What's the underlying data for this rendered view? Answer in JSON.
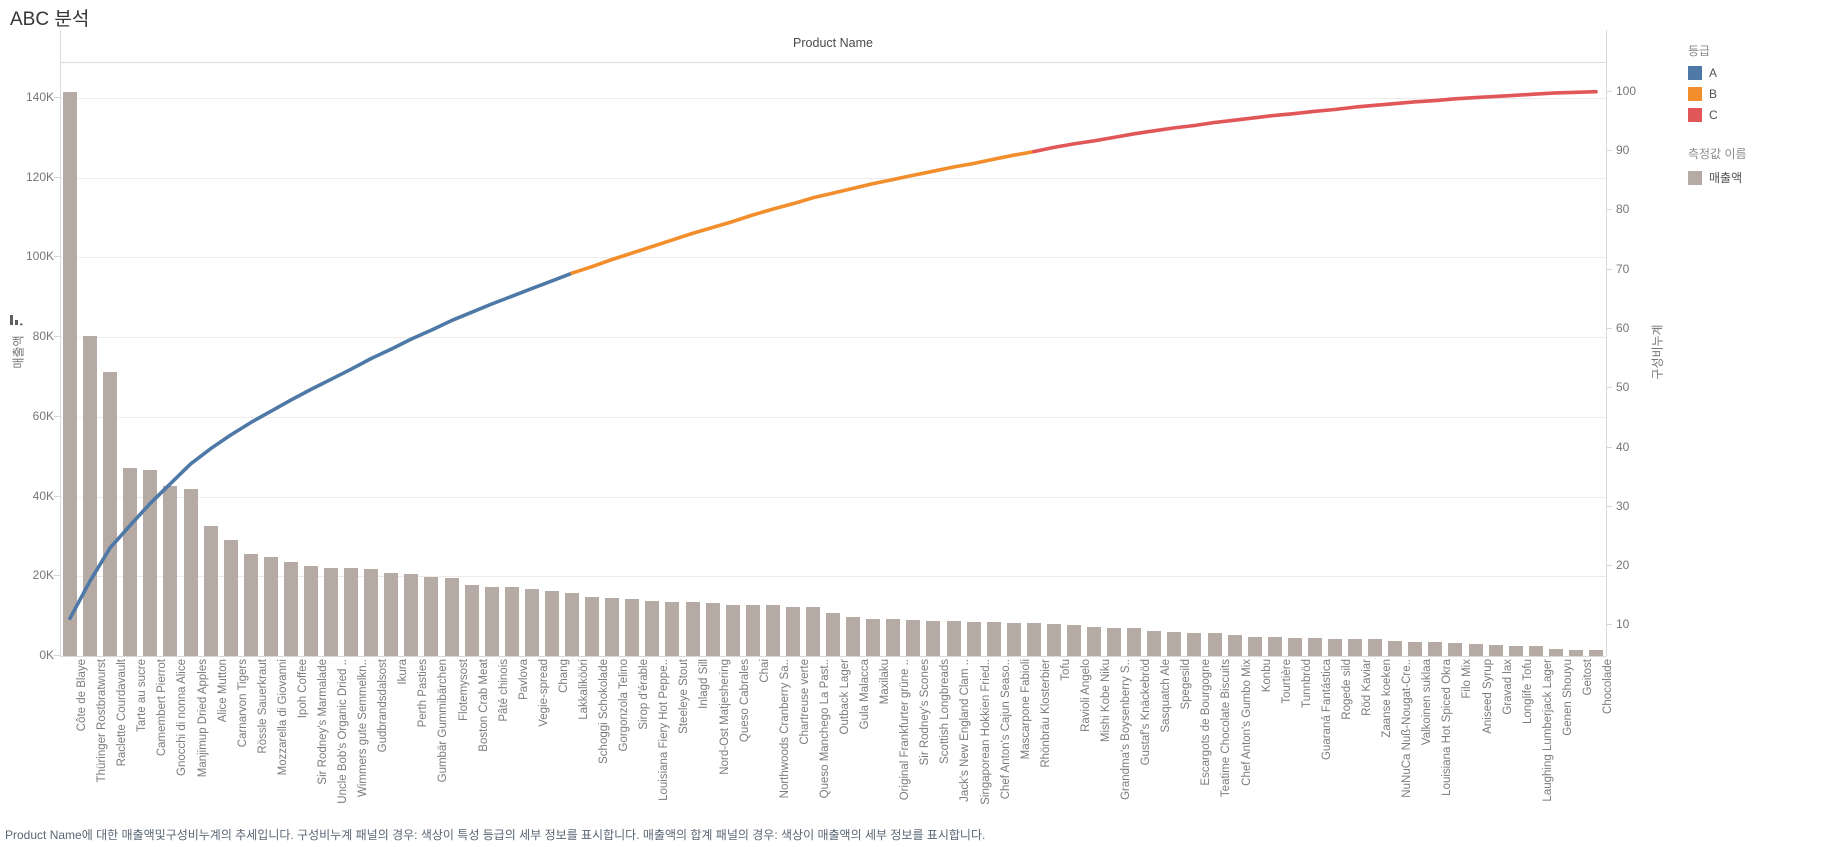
{
  "title": "ABC 분석",
  "caption": "Product Name에 대한 매출액및구성비누계의 추세입니다. 구성비누계 패널의 경우: 색상이 특성 등급의 세부 정보를 표시합니다. 매출액의 합계 패널의 경우: 색상이 매출액의 세부 정보를 표시합니다.",
  "legend": {
    "grade_title": "등급",
    "grade_items": [
      {
        "label": "A",
        "color": "#4e79a7"
      },
      {
        "label": "B",
        "color": "#f28e2b"
      },
      {
        "label": "C",
        "color": "#e15759"
      }
    ],
    "measure_title": "측정값 이름",
    "measure_items": [
      {
        "label": "매출액",
        "color": "#b5aba4"
      }
    ]
  },
  "icons": {
    "left_axis_icon": "sort-descending-bars-icon"
  },
  "chart_data": {
    "type": "combo-pareto",
    "x_axis": {
      "title": "Product Name"
    },
    "left_axis": {
      "title": "매출액",
      "tick_values": [
        0,
        20,
        40,
        60,
        80,
        100,
        120,
        140
      ],
      "tick_labels": [
        "0K",
        "20K",
        "40K",
        "60K",
        "80K",
        "100K",
        "120K",
        "140K"
      ],
      "unit": "K"
    },
    "right_axis": {
      "title": "구성비누계",
      "tick_values": [
        10,
        20,
        30,
        40,
        50,
        60,
        70,
        80,
        90,
        100
      ]
    },
    "grid": true,
    "legend_position": "right",
    "categories": [
      "Côte de Blaye",
      "Thüringer Rostbratwurst",
      "Raclette Courdavault",
      "Tarte au sucre",
      "Camembert Pierrot",
      "Gnocchi di nonna Alice",
      "Manjimup Dried Apples",
      "Alice Mutton",
      "Carnarvon Tigers",
      "Rössle Sauerkraut",
      "Mozzarella di Giovanni",
      "Ipoh Coffee",
      "Sir Rodney's Marmalade",
      "Uncle Bob's Organic Dried ..",
      "Wimmers gute Semmelkn..",
      "Gudbrandsdalsost",
      "Ikura",
      "Perth Pasties",
      "Gumbär Gummibärchen",
      "Flotemysost",
      "Boston Crab Meat",
      "Pâté chinois",
      "Pavlova",
      "Vegie-spread",
      "Chang",
      "Lakkalikööri",
      "Schoggi Schokolade",
      "Gorgonzola Telino",
      "Sirop d'érable",
      "Louisiana Fiery Hot Peppe..",
      "Steeleye Stout",
      "Inlagd Sill",
      "Nord-Ost Matjeshering",
      "Queso Cabrales",
      "Chai",
      "Northwoods Cranberry Sa..",
      "Chartreuse verte",
      "Queso Manchego La Past..",
      "Outback Lager",
      "Gula Malacca",
      "Maxilaku",
      "Original Frankfurter grüne ..",
      "Sir Rodney's Scones",
      "Scottish Longbreads",
      "Jack's New England Clam ..",
      "Singaporean Hokkien Fried..",
      "Chef Anton's Cajun Seaso..",
      "Mascarpone Fabioli",
      "Rhönbräu Klosterbier",
      "Tofu",
      "Ravioli Angelo",
      "Mishi Kobe Niku",
      "Grandma's Boysenberry S..",
      "Gustaf's Knäckebröd",
      "Sasquatch Ale",
      "Spegesild",
      "Escargots de Bourgogne",
      "Teatime Chocolate Biscuits",
      "Chef Anton's Gumbo Mix",
      "Konbu",
      "Tourtière",
      "Tunnbröd",
      "Guaraná Fantástica",
      "Rogede sild",
      "Röd Kaviar",
      "Zaanse koeken",
      "NuNuCa Nuß-Nougat-Cre..",
      "Valkoinen suklaa",
      "Louisiana Hot Spiced Okra",
      "Filo Mix",
      "Aniseed Syrup",
      "Gravad lax",
      "Longlife Tofu",
      "Laughing Lumberjack Lager",
      "Genen Shouyu",
      "Geitost",
      "Chocolade"
    ],
    "series": [
      {
        "type": "bar",
        "name": "매출액",
        "axis": "left",
        "color": "#b5aba4",
        "values_k": [
          141.4,
          80.4,
          71.2,
          47.2,
          46.8,
          42.6,
          41.8,
          32.7,
          29.2,
          25.7,
          24.9,
          23.5,
          22.6,
          22.0,
          22.0,
          21.9,
          20.9,
          20.6,
          19.8,
          19.6,
          17.9,
          17.4,
          17.2,
          16.7,
          16.4,
          15.8,
          14.9,
          14.6,
          14.4,
          13.9,
          13.6,
          13.5,
          13.2,
          12.9,
          12.8,
          12.8,
          12.3,
          12.3,
          10.7,
          9.9,
          9.2,
          9.2,
          9.0,
          8.7,
          8.7,
          8.6,
          8.6,
          8.4,
          8.2,
          8.0,
          7.7,
          7.2,
          7.1,
          7.1,
          6.4,
          6.1,
          5.9,
          5.9,
          5.3,
          4.9,
          4.7,
          4.5,
          4.5,
          4.3,
          4.2,
          4.2,
          3.7,
          3.4,
          3.4,
          3.2,
          3.0,
          2.7,
          2.4,
          2.4,
          1.8,
          1.6,
          1.5
        ]
      },
      {
        "type": "line",
        "name": "구성비누계",
        "axis": "right",
        "values_pct": [
          11.2,
          17.5,
          23.1,
          26.9,
          30.6,
          33.9,
          37.2,
          39.8,
          42.1,
          44.2,
          46.1,
          48.0,
          49.8,
          51.5,
          53.2,
          55.0,
          56.6,
          58.3,
          59.8,
          61.4,
          62.8,
          64.2,
          65.5,
          66.8,
          68.1,
          69.4,
          70.5,
          71.7,
          72.8,
          73.9,
          75.0,
          76.1,
          77.1,
          78.1,
          79.2,
          80.2,
          81.1,
          82.1,
          82.9,
          83.7,
          84.5,
          85.2,
          85.9,
          86.6,
          87.3,
          87.9,
          88.6,
          89.3,
          89.9,
          90.6,
          91.2,
          91.7,
          92.3,
          92.9,
          93.4,
          93.9,
          94.3,
          94.8,
          95.2,
          95.6,
          96.0,
          96.3,
          96.7,
          97.0,
          97.4,
          97.7,
          98.0,
          98.3,
          98.5,
          98.8,
          99.0,
          99.2,
          99.4,
          99.6,
          99.8,
          99.9,
          100.0
        ],
        "grade_colors": {
          "A": "#4e79a7",
          "B": "#f28e2b",
          "C": "#e15759"
        },
        "grade_last_index": {
          "A": 25,
          "B": 48,
          "C": 76
        }
      }
    ]
  }
}
